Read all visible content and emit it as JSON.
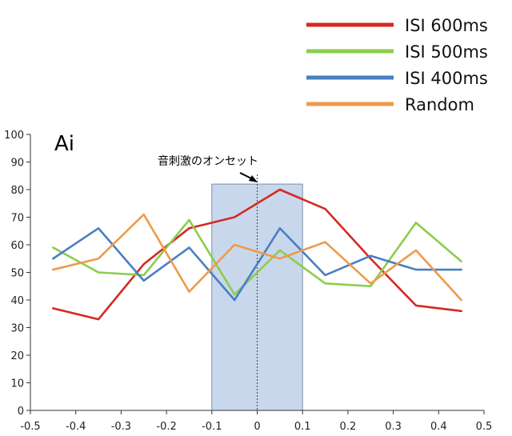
{
  "chart_data": {
    "type": "line",
    "panel_label": "Ai",
    "annotation": "音刺激のオンセット",
    "x": [
      -0.45,
      -0.35,
      -0.25,
      -0.15,
      -0.05,
      0.05,
      0.15,
      0.25,
      0.35,
      0.45
    ],
    "xlim": [
      -0.5,
      0.5
    ],
    "ylim": [
      0,
      100
    ],
    "x_ticks": [
      -0.5,
      -0.4,
      -0.3,
      -0.2,
      -0.1,
      0,
      0.1,
      0.2,
      0.3,
      0.4,
      0.5
    ],
    "y_ticks": [
      0,
      10,
      20,
      30,
      40,
      50,
      60,
      70,
      80,
      90,
      100
    ],
    "highlight_region": [
      -0.1,
      0.1
    ],
    "highlight_top": 82,
    "onset_x": 0,
    "grid": false,
    "legend_position": "top-right",
    "series": [
      {
        "name": "ISI 600ms",
        "color": "#d42a22",
        "values": [
          37,
          33,
          53,
          66,
          70,
          80,
          73,
          55,
          38,
          36
        ]
      },
      {
        "name": "ISI 500ms",
        "color": "#8ccd4e",
        "values": [
          59,
          50,
          49,
          69,
          42,
          58,
          46,
          45,
          68,
          54
        ]
      },
      {
        "name": "ISI 400ms",
        "color": "#4a7fc1",
        "values": [
          55,
          66,
          47,
          59,
          40,
          66,
          49,
          56,
          51,
          51
        ]
      },
      {
        "name": "Random",
        "color": "#ef9a4b",
        "values": [
          51,
          55,
          71,
          43,
          60,
          55,
          61,
          46,
          58,
          40
        ]
      }
    ]
  }
}
